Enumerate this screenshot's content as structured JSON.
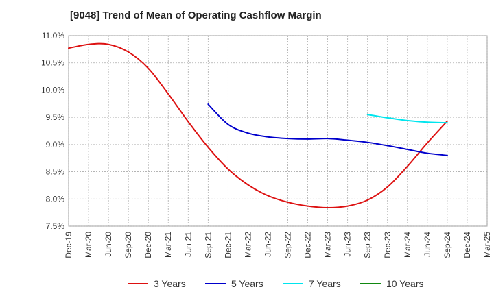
{
  "chart_data": {
    "type": "line",
    "title": "[9048]  Trend of Mean of Operating Cashflow Margin",
    "xlabel": "",
    "ylabel": "",
    "categories": [
      "Dec-19",
      "Mar-20",
      "Jun-20",
      "Sep-20",
      "Dec-20",
      "Mar-21",
      "Jun-21",
      "Sep-21",
      "Dec-21",
      "Mar-22",
      "Jun-22",
      "Sep-22",
      "Dec-22",
      "Mar-23",
      "Jun-23",
      "Sep-23",
      "Dec-23",
      "Mar-24",
      "Jun-24",
      "Sep-24",
      "Dec-24",
      "Mar-25"
    ],
    "ylim": [
      7.5,
      11.0
    ],
    "yticks": [
      7.5,
      8.0,
      8.5,
      9.0,
      9.5,
      10.0,
      10.5,
      11.0
    ],
    "ytick_labels": [
      "7.5%",
      "8.0%",
      "8.5%",
      "9.0%",
      "9.5%",
      "10.0%",
      "10.5%",
      "11.0%"
    ],
    "grid": true,
    "legend_position": "bottom",
    "series": [
      {
        "name": "3 Years",
        "color": "#dd1111",
        "values": [
          10.77,
          10.84,
          10.84,
          10.7,
          10.4,
          9.93,
          9.42,
          8.95,
          8.55,
          8.26,
          8.06,
          7.94,
          7.87,
          7.84,
          7.87,
          7.98,
          8.22,
          8.6,
          9.03,
          9.43,
          null,
          null
        ]
      },
      {
        "name": "5 Years",
        "color": "#0000cc",
        "values": [
          null,
          null,
          null,
          null,
          null,
          null,
          null,
          9.74,
          9.37,
          9.21,
          9.14,
          9.11,
          9.1,
          9.11,
          9.08,
          9.04,
          8.98,
          8.91,
          8.84,
          8.8,
          null,
          null
        ]
      },
      {
        "name": "7 Years",
        "color": "#00e5ee",
        "values": [
          null,
          null,
          null,
          null,
          null,
          null,
          null,
          null,
          null,
          null,
          null,
          null,
          null,
          null,
          null,
          9.55,
          9.49,
          9.44,
          9.41,
          9.4,
          null,
          null
        ]
      },
      {
        "name": "10 Years",
        "color": "#118811",
        "values": [
          null,
          null,
          null,
          null,
          null,
          null,
          null,
          null,
          null,
          null,
          null,
          null,
          null,
          null,
          null,
          null,
          null,
          null,
          null,
          null,
          null,
          null
        ]
      }
    ]
  }
}
